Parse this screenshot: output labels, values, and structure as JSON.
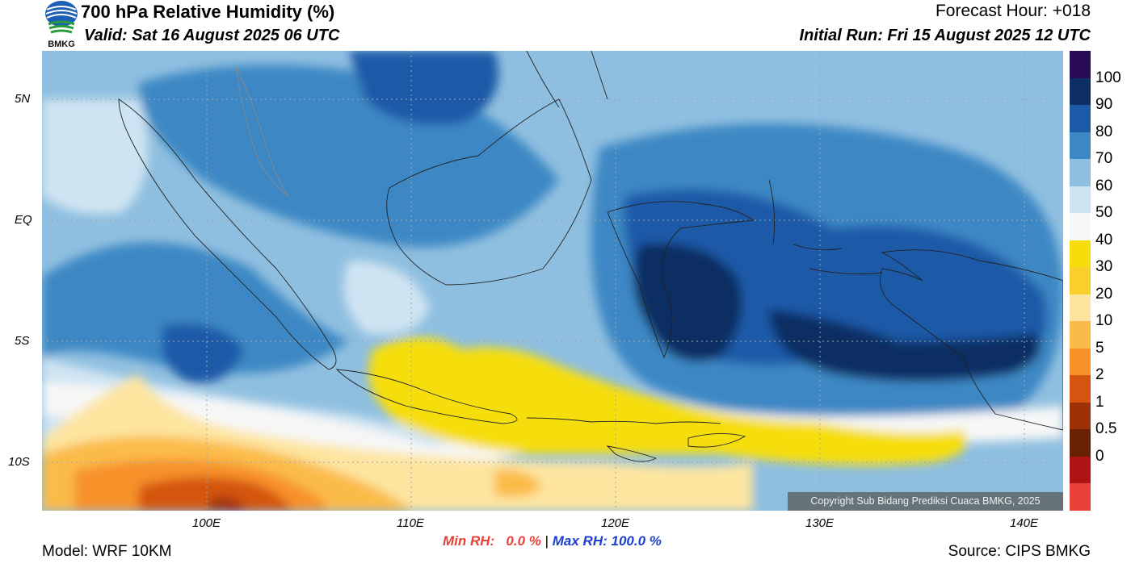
{
  "header": {
    "title": "700 hPa Relative Humidity (%)",
    "valid": "Valid: Sat 16 August 2025 06 UTC",
    "forecast_hour": "Forecast Hour: +018",
    "initial_run": "Initial Run: Fri 15 August 2025 12 UTC",
    "logo_text": "BMKG"
  },
  "map": {
    "lat_labels": [
      "5N",
      "EQ",
      "5S",
      "10S"
    ],
    "lon_labels": [
      "100E",
      "110E",
      "120E",
      "130E",
      "140E"
    ],
    "copyright": "Copyright Sub Bidang Prediksi Cuaca BMKG, 2025"
  },
  "colorbar": {
    "labels": [
      "100",
      "90",
      "80",
      "70",
      "60",
      "50",
      "40",
      "30",
      "20",
      "10",
      "5",
      "2",
      "1",
      "0.5",
      "0"
    ],
    "colors": [
      "#2a0b55",
      "#0d2f63",
      "#1c5aa8",
      "#3d88c4",
      "#8fbfe0",
      "#cfe4f2",
      "#f7f7f7",
      "#f6de0d",
      "#f9cf2b",
      "#fde5a0",
      "#fbbb4a",
      "#f7912a",
      "#d45410",
      "#9d3208",
      "#6a2204",
      "#ae1414",
      "#e8413a"
    ]
  },
  "footer": {
    "model": "Model: WRF 10KM",
    "source": "Source: CIPS BMKG",
    "min_label": "Min RH:",
    "min_value": "0.0 %",
    "separator": "|",
    "max_label": "Max RH:",
    "max_value": "100.0 %",
    "min_color": "#e8413a",
    "max_color": "#1f3fcf"
  }
}
